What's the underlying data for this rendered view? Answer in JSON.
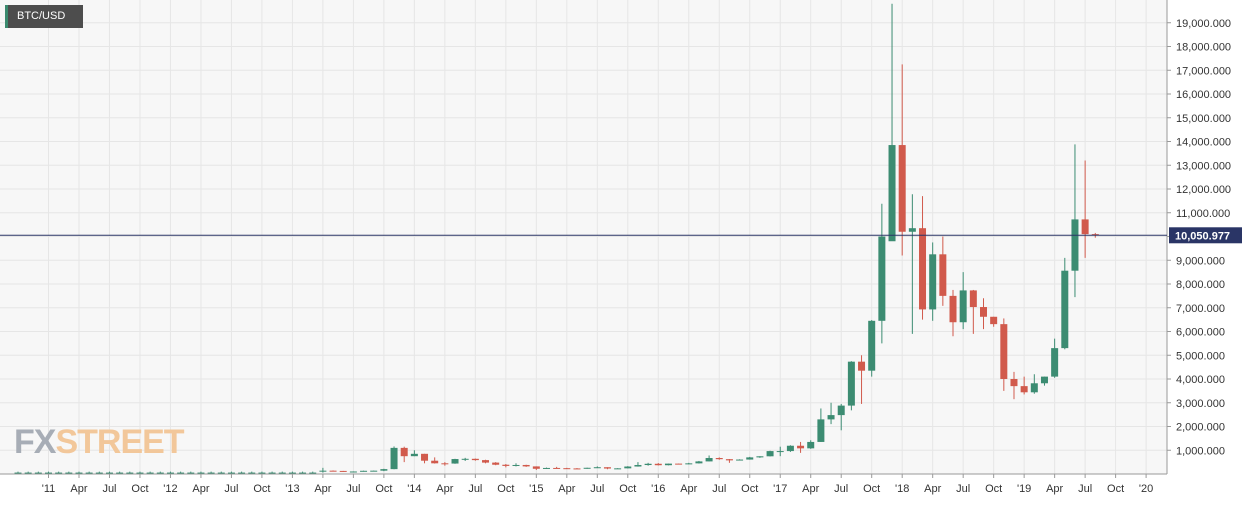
{
  "symbol": "BTC/USD",
  "logo": {
    "part1": "FX",
    "part2": "STREET"
  },
  "colors": {
    "up": "#3c8c72",
    "down": "#d15a4c",
    "grid": "#e6e6e6",
    "bg": "#f7f7f7",
    "axis_text": "#333333",
    "price_line": "#2a3566",
    "price_tag": "#2a3566"
  },
  "chart_data": {
    "type": "candlestick",
    "interval": "monthly",
    "ylim": [
      0,
      20000
    ],
    "y_ticks": [
      1000,
      2000,
      3000,
      4000,
      5000,
      6000,
      7000,
      8000,
      9000,
      10000,
      11000,
      12000,
      13000,
      14000,
      15000,
      16000,
      17000,
      18000,
      19000
    ],
    "y_tick_labels": [
      "1,000.000",
      "2,000.000",
      "3,000.000",
      "4,000.000",
      "5,000.000",
      "6,000.000",
      "7,000.000",
      "8,000.000",
      "9,000.000",
      "10,000.000",
      "11,000.000",
      "12,000.000",
      "13,000.000",
      "14,000.000",
      "15,000.000",
      "16,000.000",
      "17,000.000",
      "18,000.000",
      "19,000.000"
    ],
    "x_ticks": [
      {
        "label": "'11",
        "month": "2011-01"
      },
      {
        "label": "Apr",
        "month": "2011-04"
      },
      {
        "label": "Jul",
        "month": "2011-07"
      },
      {
        "label": "Oct",
        "month": "2011-10"
      },
      {
        "label": "'12",
        "month": "2012-01"
      },
      {
        "label": "Apr",
        "month": "2012-04"
      },
      {
        "label": "Jul",
        "month": "2012-07"
      },
      {
        "label": "Oct",
        "month": "2012-10"
      },
      {
        "label": "'13",
        "month": "2013-01"
      },
      {
        "label": "Apr",
        "month": "2013-04"
      },
      {
        "label": "Jul",
        "month": "2013-07"
      },
      {
        "label": "Oct",
        "month": "2013-10"
      },
      {
        "label": "'14",
        "month": "2014-01"
      },
      {
        "label": "Apr",
        "month": "2014-04"
      },
      {
        "label": "Jul",
        "month": "2014-07"
      },
      {
        "label": "Oct",
        "month": "2014-10"
      },
      {
        "label": "'15",
        "month": "2015-01"
      },
      {
        "label": "Apr",
        "month": "2015-04"
      },
      {
        "label": "Jul",
        "month": "2015-07"
      },
      {
        "label": "Oct",
        "month": "2015-10"
      },
      {
        "label": "'16",
        "month": "2016-01"
      },
      {
        "label": "Apr",
        "month": "2016-04"
      },
      {
        "label": "Jul",
        "month": "2016-07"
      },
      {
        "label": "Oct",
        "month": "2016-10"
      },
      {
        "label": "'17",
        "month": "2017-01"
      },
      {
        "label": "Apr",
        "month": "2017-04"
      },
      {
        "label": "Jul",
        "month": "2017-07"
      },
      {
        "label": "Oct",
        "month": "2017-10"
      },
      {
        "label": "'18",
        "month": "2018-01"
      },
      {
        "label": "Apr",
        "month": "2018-04"
      },
      {
        "label": "Jul",
        "month": "2018-07"
      },
      {
        "label": "Oct",
        "month": "2018-10"
      },
      {
        "label": "'19",
        "month": "2019-01"
      },
      {
        "label": "Apr",
        "month": "2019-04"
      },
      {
        "label": "Jul",
        "month": "2019-07"
      },
      {
        "label": "Oct",
        "month": "2019-10"
      },
      {
        "label": "'20",
        "month": "2020-01"
      }
    ],
    "current_price": 10050.977,
    "current_price_label": "10,050.977",
    "candles": [
      {
        "month": "2010-10",
        "o": 60,
        "h": 100,
        "l": 50,
        "c": 60
      },
      {
        "month": "2010-11",
        "o": 60,
        "h": 100,
        "l": 50,
        "c": 60
      },
      {
        "month": "2010-12",
        "o": 60,
        "h": 100,
        "l": 50,
        "c": 60
      },
      {
        "month": "2011-01",
        "o": 60,
        "h": 100,
        "l": 50,
        "c": 60
      },
      {
        "month": "2011-02",
        "o": 60,
        "h": 100,
        "l": 50,
        "c": 60
      },
      {
        "month": "2011-03",
        "o": 60,
        "h": 100,
        "l": 50,
        "c": 60
      },
      {
        "month": "2011-04",
        "o": 60,
        "h": 100,
        "l": 50,
        "c": 60
      },
      {
        "month": "2011-05",
        "o": 60,
        "h": 100,
        "l": 50,
        "c": 60
      },
      {
        "month": "2011-06",
        "o": 60,
        "h": 100,
        "l": 50,
        "c": 60
      },
      {
        "month": "2011-07",
        "o": 60,
        "h": 100,
        "l": 50,
        "c": 60
      },
      {
        "month": "2011-08",
        "o": 60,
        "h": 100,
        "l": 50,
        "c": 60
      },
      {
        "month": "2011-09",
        "o": 60,
        "h": 100,
        "l": 50,
        "c": 60
      },
      {
        "month": "2011-10",
        "o": 60,
        "h": 100,
        "l": 50,
        "c": 60
      },
      {
        "month": "2011-11",
        "o": 60,
        "h": 100,
        "l": 50,
        "c": 60
      },
      {
        "month": "2011-12",
        "o": 60,
        "h": 100,
        "l": 50,
        "c": 60
      },
      {
        "month": "2012-01",
        "o": 60,
        "h": 100,
        "l": 50,
        "c": 60
      },
      {
        "month": "2012-02",
        "o": 60,
        "h": 100,
        "l": 50,
        "c": 60
      },
      {
        "month": "2012-03",
        "o": 60,
        "h": 100,
        "l": 50,
        "c": 60
      },
      {
        "month": "2012-04",
        "o": 60,
        "h": 100,
        "l": 50,
        "c": 60
      },
      {
        "month": "2012-05",
        "o": 60,
        "h": 100,
        "l": 50,
        "c": 60
      },
      {
        "month": "2012-06",
        "o": 60,
        "h": 100,
        "l": 50,
        "c": 60
      },
      {
        "month": "2012-07",
        "o": 60,
        "h": 100,
        "l": 50,
        "c": 60
      },
      {
        "month": "2012-08",
        "o": 60,
        "h": 100,
        "l": 50,
        "c": 60
      },
      {
        "month": "2012-09",
        "o": 60,
        "h": 100,
        "l": 50,
        "c": 60
      },
      {
        "month": "2012-10",
        "o": 60,
        "h": 100,
        "l": 50,
        "c": 60
      },
      {
        "month": "2012-11",
        "o": 60,
        "h": 100,
        "l": 50,
        "c": 60
      },
      {
        "month": "2012-12",
        "o": 60,
        "h": 100,
        "l": 50,
        "c": 60
      },
      {
        "month": "2013-01",
        "o": 60,
        "h": 100,
        "l": 50,
        "c": 60
      },
      {
        "month": "2013-02",
        "o": 60,
        "h": 100,
        "l": 50,
        "c": 60
      },
      {
        "month": "2013-03",
        "o": 60,
        "h": 100,
        "l": 50,
        "c": 60
      },
      {
        "month": "2013-04",
        "o": 100,
        "h": 260,
        "l": 60,
        "c": 140
      },
      {
        "month": "2013-05",
        "o": 140,
        "h": 150,
        "l": 120,
        "c": 130
      },
      {
        "month": "2013-06",
        "o": 130,
        "h": 130,
        "l": 90,
        "c": 97
      },
      {
        "month": "2013-07",
        "o": 97,
        "h": 110,
        "l": 65,
        "c": 106
      },
      {
        "month": "2013-08",
        "o": 106,
        "h": 140,
        "l": 100,
        "c": 135
      },
      {
        "month": "2013-09",
        "o": 135,
        "h": 145,
        "l": 120,
        "c": 140
      },
      {
        "month": "2013-10",
        "o": 140,
        "h": 220,
        "l": 120,
        "c": 205
      },
      {
        "month": "2013-11",
        "o": 205,
        "h": 1160,
        "l": 200,
        "c": 1100
      },
      {
        "month": "2013-12",
        "o": 1100,
        "h": 1150,
        "l": 500,
        "c": 750
      },
      {
        "month": "2014-01",
        "o": 750,
        "h": 1000,
        "l": 750,
        "c": 850
      },
      {
        "month": "2014-02",
        "o": 850,
        "h": 850,
        "l": 450,
        "c": 560
      },
      {
        "month": "2014-03",
        "o": 560,
        "h": 700,
        "l": 440,
        "c": 450
      },
      {
        "month": "2014-04",
        "o": 450,
        "h": 500,
        "l": 350,
        "c": 440
      },
      {
        "month": "2014-05",
        "o": 440,
        "h": 640,
        "l": 430,
        "c": 630
      },
      {
        "month": "2014-06",
        "o": 630,
        "h": 680,
        "l": 550,
        "c": 640
      },
      {
        "month": "2014-07",
        "o": 640,
        "h": 650,
        "l": 560,
        "c": 585
      },
      {
        "month": "2014-08",
        "o": 585,
        "h": 600,
        "l": 450,
        "c": 480
      },
      {
        "month": "2014-09",
        "o": 480,
        "h": 500,
        "l": 370,
        "c": 390
      },
      {
        "month": "2014-10",
        "o": 390,
        "h": 420,
        "l": 280,
        "c": 340
      },
      {
        "month": "2014-11",
        "o": 340,
        "h": 450,
        "l": 320,
        "c": 380
      },
      {
        "month": "2014-12",
        "o": 380,
        "h": 390,
        "l": 300,
        "c": 320
      },
      {
        "month": "2015-01",
        "o": 320,
        "h": 320,
        "l": 170,
        "c": 220
      },
      {
        "month": "2015-02",
        "o": 220,
        "h": 270,
        "l": 210,
        "c": 255
      },
      {
        "month": "2015-03",
        "o": 255,
        "h": 300,
        "l": 240,
        "c": 245
      },
      {
        "month": "2015-04",
        "o": 245,
        "h": 260,
        "l": 215,
        "c": 235
      },
      {
        "month": "2015-05",
        "o": 235,
        "h": 250,
        "l": 225,
        "c": 230
      },
      {
        "month": "2015-06",
        "o": 230,
        "h": 265,
        "l": 220,
        "c": 262
      },
      {
        "month": "2015-07",
        "o": 262,
        "h": 320,
        "l": 260,
        "c": 285
      },
      {
        "month": "2015-08",
        "o": 285,
        "h": 285,
        "l": 200,
        "c": 230
      },
      {
        "month": "2015-09",
        "o": 230,
        "h": 245,
        "l": 225,
        "c": 238
      },
      {
        "month": "2015-10",
        "o": 238,
        "h": 330,
        "l": 235,
        "c": 315
      },
      {
        "month": "2015-11",
        "o": 315,
        "h": 500,
        "l": 310,
        "c": 378
      },
      {
        "month": "2015-12",
        "o": 378,
        "h": 470,
        "l": 350,
        "c": 430
      },
      {
        "month": "2016-01",
        "o": 430,
        "h": 460,
        "l": 360,
        "c": 370
      },
      {
        "month": "2016-02",
        "o": 370,
        "h": 440,
        "l": 365,
        "c": 437
      },
      {
        "month": "2016-03",
        "o": 437,
        "h": 440,
        "l": 400,
        "c": 416
      },
      {
        "month": "2016-04",
        "o": 416,
        "h": 470,
        "l": 410,
        "c": 448
      },
      {
        "month": "2016-05",
        "o": 448,
        "h": 550,
        "l": 440,
        "c": 530
      },
      {
        "month": "2016-06",
        "o": 530,
        "h": 780,
        "l": 530,
        "c": 673
      },
      {
        "month": "2016-07",
        "o": 673,
        "h": 700,
        "l": 600,
        "c": 624
      },
      {
        "month": "2016-08",
        "o": 624,
        "h": 630,
        "l": 470,
        "c": 574
      },
      {
        "month": "2016-09",
        "o": 574,
        "h": 620,
        "l": 570,
        "c": 608
      },
      {
        "month": "2016-10",
        "o": 608,
        "h": 720,
        "l": 605,
        "c": 700
      },
      {
        "month": "2016-11",
        "o": 700,
        "h": 750,
        "l": 680,
        "c": 745
      },
      {
        "month": "2016-12",
        "o": 745,
        "h": 980,
        "l": 740,
        "c": 965
      },
      {
        "month": "2017-01",
        "o": 965,
        "h": 1150,
        "l": 750,
        "c": 965
      },
      {
        "month": "2017-02",
        "o": 965,
        "h": 1210,
        "l": 930,
        "c": 1190
      },
      {
        "month": "2017-03",
        "o": 1190,
        "h": 1350,
        "l": 890,
        "c": 1080
      },
      {
        "month": "2017-04",
        "o": 1080,
        "h": 1420,
        "l": 1060,
        "c": 1350
      },
      {
        "month": "2017-05",
        "o": 1350,
        "h": 2760,
        "l": 1350,
        "c": 2300
      },
      {
        "month": "2017-06",
        "o": 2300,
        "h": 3000,
        "l": 2100,
        "c": 2480
      },
      {
        "month": "2017-07",
        "o": 2480,
        "h": 2950,
        "l": 1840,
        "c": 2880
      },
      {
        "month": "2017-08",
        "o": 2880,
        "h": 4750,
        "l": 2680,
        "c": 4730
      },
      {
        "month": "2017-09",
        "o": 4730,
        "h": 5000,
        "l": 2950,
        "c": 4350
      },
      {
        "month": "2017-10",
        "o": 4350,
        "h": 6480,
        "l": 4100,
        "c": 6450
      },
      {
        "month": "2017-11",
        "o": 6450,
        "h": 11380,
        "l": 5500,
        "c": 10000
      },
      {
        "month": "2017-12",
        "o": 9800,
        "h": 19800,
        "l": 9900,
        "c": 13850
      },
      {
        "month": "2018-01",
        "o": 13850,
        "h": 17250,
        "l": 9200,
        "c": 10200
      },
      {
        "month": "2018-02",
        "o": 10200,
        "h": 11780,
        "l": 5900,
        "c": 10350
      },
      {
        "month": "2018-03",
        "o": 10350,
        "h": 11700,
        "l": 6500,
        "c": 6930
      },
      {
        "month": "2018-04",
        "o": 6930,
        "h": 9750,
        "l": 6450,
        "c": 9250
      },
      {
        "month": "2018-05",
        "o": 9250,
        "h": 10000,
        "l": 7080,
        "c": 7500
      },
      {
        "month": "2018-06",
        "o": 7500,
        "h": 7750,
        "l": 5800,
        "c": 6390
      },
      {
        "month": "2018-07",
        "o": 6390,
        "h": 8500,
        "l": 6100,
        "c": 7730
      },
      {
        "month": "2018-08",
        "o": 7730,
        "h": 7750,
        "l": 5900,
        "c": 7030
      },
      {
        "month": "2018-09",
        "o": 7030,
        "h": 7400,
        "l": 6100,
        "c": 6620
      },
      {
        "month": "2018-10",
        "o": 6620,
        "h": 6620,
        "l": 6200,
        "c": 6310
      },
      {
        "month": "2018-11",
        "o": 6310,
        "h": 6550,
        "l": 3500,
        "c": 4000
      },
      {
        "month": "2018-12",
        "o": 4000,
        "h": 4300,
        "l": 3150,
        "c": 3700
      },
      {
        "month": "2019-01",
        "o": 3700,
        "h": 4100,
        "l": 3350,
        "c": 3440
      },
      {
        "month": "2019-02",
        "o": 3440,
        "h": 4200,
        "l": 3380,
        "c": 3820
      },
      {
        "month": "2019-03",
        "o": 3820,
        "h": 4100,
        "l": 3720,
        "c": 4100
      },
      {
        "month": "2019-04",
        "o": 4100,
        "h": 5700,
        "l": 4050,
        "c": 5300
      },
      {
        "month": "2019-05",
        "o": 5300,
        "h": 9100,
        "l": 5250,
        "c": 8560
      },
      {
        "month": "2019-06",
        "o": 8560,
        "h": 13880,
        "l": 7450,
        "c": 10720
      },
      {
        "month": "2019-07",
        "o": 10720,
        "h": 13200,
        "l": 9100,
        "c": 10100
      },
      {
        "month": "2019-08",
        "o": 10100,
        "h": 10150,
        "l": 9950,
        "c": 10050
      }
    ]
  }
}
